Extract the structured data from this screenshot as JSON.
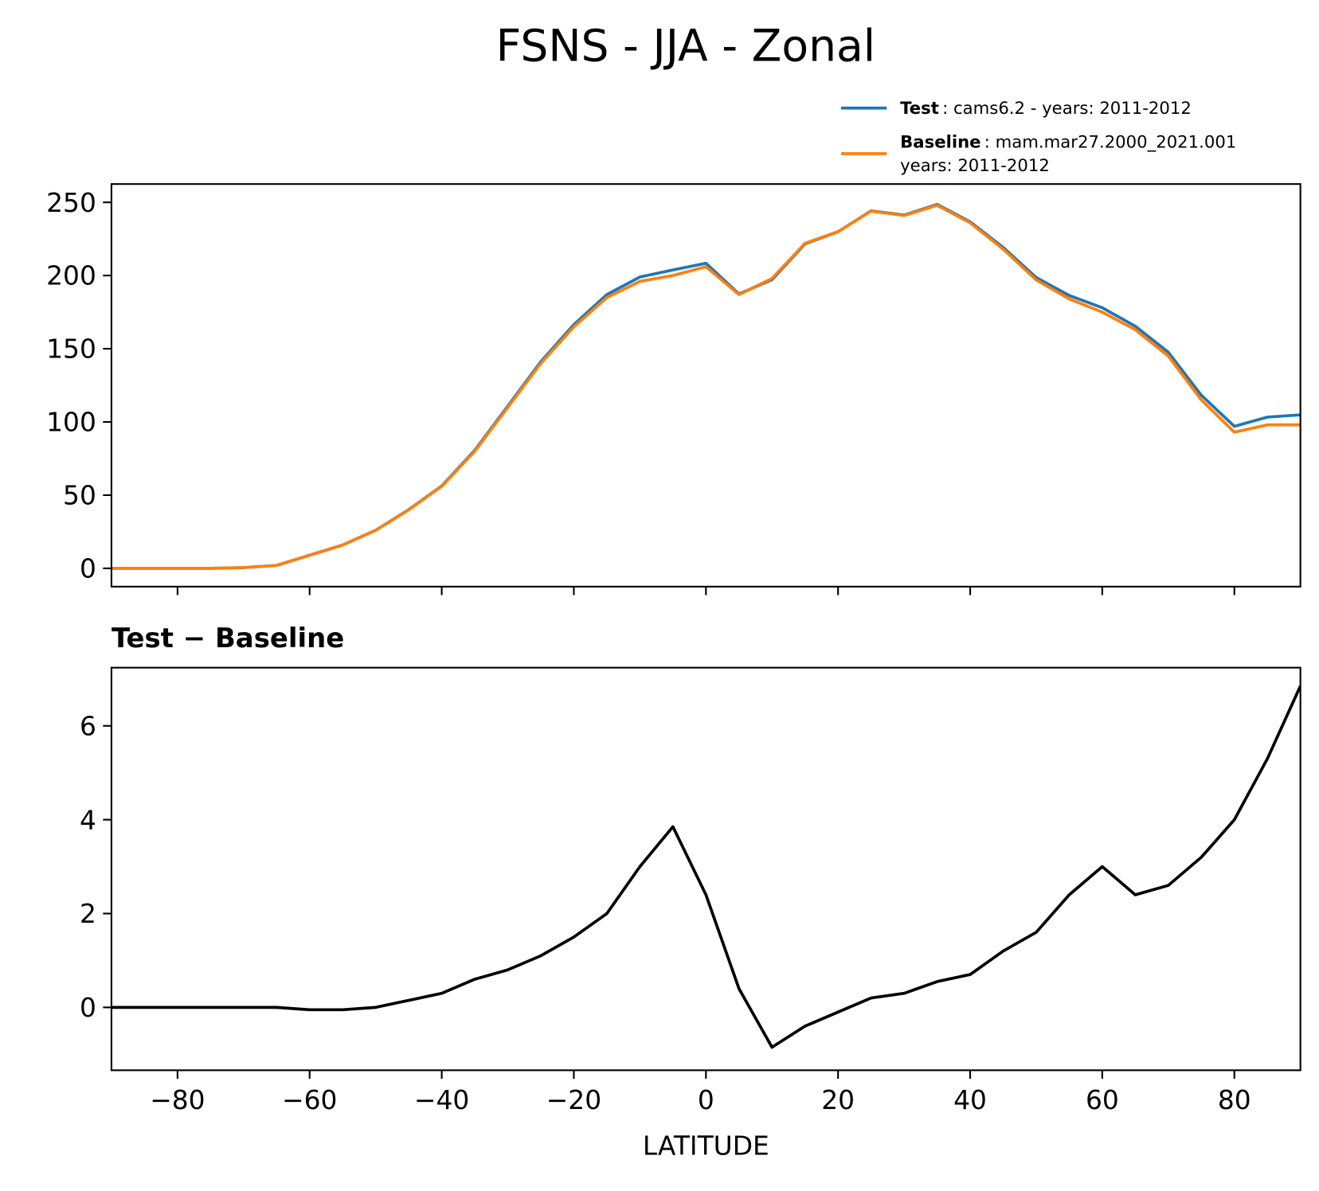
{
  "chart_data": [
    {
      "type": "line",
      "title": "FSNS - JJA - Zonal",
      "x": [
        -90,
        -85,
        -80,
        -75,
        -70,
        -65,
        -60,
        -55,
        -50,
        -45,
        -40,
        -35,
        -30,
        -25,
        -20,
        -15,
        -10,
        -5,
        0,
        5,
        10,
        15,
        20,
        25,
        30,
        35,
        40,
        45,
        50,
        55,
        60,
        65,
        70,
        75,
        80,
        85,
        90
      ],
      "series": [
        {
          "name": "Test",
          "label_lines": [
            ": cams6.2 - years: 2011-2012"
          ],
          "color": "#1f77b4",
          "values": [
            0,
            0,
            0,
            0,
            0.5,
            2,
            8.95,
            15.95,
            26,
            40.15,
            56.3,
            80.6,
            110.8,
            141.1,
            166.5,
            187,
            199,
            203.85,
            208.4,
            187.4,
            197.15,
            221.6,
            229.9,
            244.2,
            241.3,
            248.55,
            236.7,
            219.2,
            198.6,
            186.4,
            178,
            165.4,
            147.6,
            118.2,
            97,
            103.3,
            104.85
          ]
        },
        {
          "name": "Baseline",
          "label_lines": [
            ": mam.mar27.2000_2021.001",
            "years: 2011-2012"
          ],
          "color": "#ff7f0e",
          "values": [
            0,
            0,
            0,
            0,
            0.5,
            2,
            9,
            16,
            26,
            40,
            56,
            80,
            110,
            140,
            165,
            185,
            196,
            200,
            206,
            187,
            198,
            222,
            230,
            244,
            241,
            248,
            236,
            218,
            197,
            184,
            175,
            163,
            145,
            115,
            93,
            98,
            98
          ]
        }
      ],
      "xlim": [
        -90,
        90
      ],
      "xticks": [
        {
          "value": -80,
          "label": "−80"
        },
        {
          "value": -60,
          "label": "−60"
        },
        {
          "value": -40,
          "label": "−40"
        },
        {
          "value": -20,
          "label": "−20"
        },
        0,
        20,
        40,
        60,
        80
      ],
      "ylim": [
        -12.5,
        262.5
      ],
      "yticks": [
        0,
        50,
        100,
        150,
        200,
        250
      ],
      "legend": "upper right"
    },
    {
      "type": "line",
      "title": "Test − Baseline",
      "xlabel": "LATITUDE",
      "x": [
        -90,
        -85,
        -80,
        -75,
        -70,
        -65,
        -60,
        -55,
        -50,
        -45,
        -40,
        -35,
        -30,
        -25,
        -20,
        -15,
        -10,
        -5,
        0,
        5,
        10,
        15,
        20,
        25,
        30,
        35,
        40,
        45,
        50,
        55,
        60,
        65,
        70,
        75,
        80,
        85,
        90
      ],
      "series": [
        {
          "color": "#000000",
          "values": [
            0,
            0,
            0,
            0,
            0,
            0,
            -0.05,
            -0.05,
            0,
            0.15,
            0.3,
            0.6,
            0.8,
            1.1,
            1.5,
            2.0,
            3.0,
            3.85,
            2.4,
            0.4,
            -0.85,
            -0.4,
            -0.1,
            0.2,
            0.3,
            0.55,
            0.7,
            1.2,
            1.6,
            2.4,
            3.0,
            2.4,
            2.6,
            3.2,
            4.0,
            5.3,
            6.85
          ]
        }
      ],
      "xlim": [
        -90,
        90
      ],
      "xticks": [
        {
          "value": -80,
          "label": "−80"
        },
        {
          "value": -60,
          "label": "−60"
        },
        {
          "value": -40,
          "label": "−40"
        },
        {
          "value": -20,
          "label": "−20"
        },
        0,
        20,
        40,
        60,
        80
      ],
      "ylim": [
        -1.34,
        7.24
      ],
      "yticks": [
        0,
        2,
        4,
        6
      ]
    }
  ]
}
